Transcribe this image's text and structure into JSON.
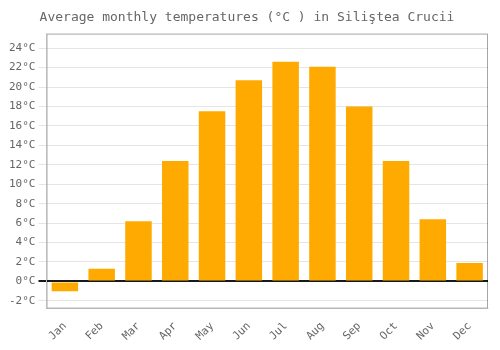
{
  "chart_data": {
    "type": "bar",
    "title": "Average monthly temperatures (°C ) in Siliştea Crucii",
    "categories": [
      "Jan",
      "Feb",
      "Mar",
      "Apr",
      "May",
      "Jun",
      "Jul",
      "Aug",
      "Sep",
      "Oct",
      "Nov",
      "Dec"
    ],
    "values": [
      -1.0,
      1.3,
      6.2,
      12.4,
      17.5,
      20.7,
      22.6,
      22.1,
      18.0,
      12.4,
      6.4,
      1.9
    ],
    "color": "#FFAA00",
    "ylim": [
      -2.8,
      25.5
    ],
    "yticks": [
      {
        "value": -2,
        "label": "-2°C"
      },
      {
        "value": 0,
        "label": "0°C"
      },
      {
        "value": 2,
        "label": "2°C"
      },
      {
        "value": 4,
        "label": "4°C"
      },
      {
        "value": 6,
        "label": "6°C"
      },
      {
        "value": 8,
        "label": "8°C"
      },
      {
        "value": 10,
        "label": "10°C"
      },
      {
        "value": 12,
        "label": "12°C"
      },
      {
        "value": 14,
        "label": "14°C"
      },
      {
        "value": 16,
        "label": "16°C"
      },
      {
        "value": 18,
        "label": "18°C"
      },
      {
        "value": 20,
        "label": "20°C"
      },
      {
        "value": 22,
        "label": "22°C"
      },
      {
        "value": 24,
        "label": "24°C"
      }
    ],
    "grid": true
  }
}
